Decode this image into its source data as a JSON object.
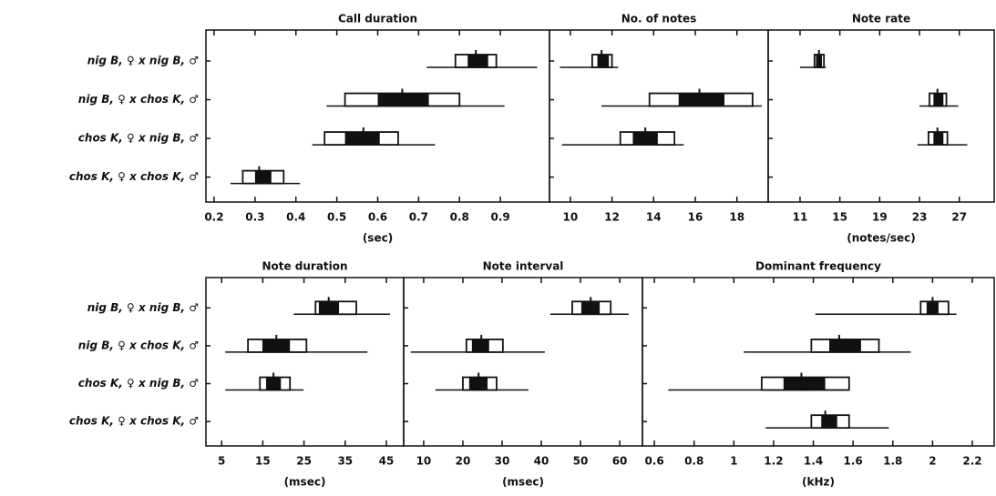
{
  "chart_data": [
    {
      "type": "range",
      "title": "Call duration",
      "xlabel": "(sec)",
      "categories": [
        "nig B, ♀ x nig B, ♂",
        "nig B, ♀ x chos K, ♂",
        "chos K, ♀ x nig B, ♂",
        "chos K, ♀ x chos K, ♂"
      ],
      "xlim": [
        0.18,
        1.02
      ],
      "xticks": [
        0.2,
        0.3,
        0.4,
        0.5,
        0.6,
        0.7,
        0.8,
        0.9
      ],
      "range_min": [
        0.72,
        0.475,
        0.44,
        0.24
      ],
      "range_max": [
        0.99,
        0.91,
        0.74,
        0.41
      ],
      "box_low": [
        0.79,
        0.52,
        0.47,
        0.27
      ],
      "box_high": [
        0.89,
        0.8,
        0.65,
        0.37
      ],
      "inner_low": [
        0.82,
        0.6,
        0.52,
        0.3
      ],
      "inner_high": [
        0.87,
        0.725,
        0.605,
        0.34
      ],
      "mean": [
        0.84,
        0.66,
        0.565,
        0.31
      ]
    },
    {
      "type": "range",
      "title": "No. of notes",
      "xlim": [
        9,
        19.5
      ],
      "xticks": [
        10,
        12,
        14,
        16,
        18
      ],
      "range_min": [
        9.5,
        11.5,
        9.6,
        null
      ],
      "range_max": [
        12.3,
        19.2,
        15.45,
        null
      ],
      "box_low": [
        11.05,
        13.8,
        12.4,
        null
      ],
      "box_high": [
        12.0,
        18.75,
        15.0,
        null
      ],
      "inner_low": [
        11.3,
        15.2,
        13.0,
        null
      ],
      "inner_high": [
        11.85,
        17.4,
        14.2,
        null
      ],
      "mean": [
        11.5,
        16.2,
        13.6,
        null
      ]
    },
    {
      "type": "range",
      "title": "Note rate",
      "xlabel": "(notes/sec)",
      "xlim": [
        7.8,
        30.5
      ],
      "xticks": [
        11,
        15,
        19,
        23,
        27
      ],
      "range_min": [
        11,
        23,
        22.8,
        null
      ],
      "range_max": [
        13.6,
        26.9,
        27.8,
        null
      ],
      "box_low": [
        12.45,
        24,
        23.9,
        null
      ],
      "box_high": [
        13.4,
        25.7,
        25.8,
        null
      ],
      "inner_low": [
        12.6,
        24.4,
        24.4,
        null
      ],
      "inner_high": [
        13.2,
        25.4,
        25.4,
        null
      ],
      "mean": [
        12.9,
        24.8,
        24.8,
        null
      ]
    },
    {
      "type": "range",
      "title": "Note duration",
      "xlabel": "(msec)",
      "categories": [
        "nig B, ♀ x nig B, ♂",
        "nig B, ♀ x chos K, ♂",
        "chos K, ♀ x nig B, ♂",
        "chos K, ♀ x chos K, ♂"
      ],
      "xlim": [
        1.2,
        49.2
      ],
      "xticks": [
        5,
        15,
        25,
        35,
        45
      ],
      "range_min": [
        22.5,
        5.9,
        5.9,
        null
      ],
      "range_max": [
        45.9,
        40.4,
        24.9,
        null
      ],
      "box_low": [
        27.8,
        11.4,
        14.3,
        null
      ],
      "box_high": [
        37.7,
        25.6,
        21.6,
        null
      ],
      "inner_low": [
        28.6,
        14.9,
        15.8,
        null
      ],
      "inner_high": [
        33.5,
        21.6,
        19.4,
        null
      ],
      "mean": [
        31,
        18.3,
        17.6,
        null
      ]
    },
    {
      "type": "range",
      "title": "Note interval",
      "xlabel": "(msec)",
      "xlim": [
        4.9,
        65.8
      ],
      "xticks": [
        10,
        20,
        30,
        40,
        50,
        60
      ],
      "range_min": [
        42.3,
        6.7,
        13,
        null
      ],
      "range_max": [
        62.3,
        40.9,
        36.7,
        null
      ],
      "box_low": [
        47.9,
        20.9,
        20,
        null
      ],
      "box_high": [
        57.7,
        30.2,
        28.6,
        null
      ],
      "inner_low": [
        50.2,
        22.3,
        21.6,
        null
      ],
      "inner_high": [
        54.9,
        26.7,
        26.3,
        null
      ],
      "mean": [
        52.6,
        24.7,
        24,
        null
      ]
    },
    {
      "type": "range",
      "title": "Dominant frequency",
      "xlabel": "(kHz)",
      "xlim": [
        0.54,
        2.31
      ],
      "xticks": [
        0.6,
        0.8,
        1.0,
        1.2,
        1.4,
        1.6,
        1.8,
        2.0,
        2.2
      ],
      "range_min": [
        1.41,
        1.05,
        0.67,
        1.16
      ],
      "range_max": [
        2.12,
        1.89,
        1.43,
        1.78
      ],
      "box_low": [
        1.94,
        1.39,
        1.14,
        1.39
      ],
      "box_high": [
        2.08,
        1.73,
        1.58,
        1.58
      ],
      "inner_low": [
        1.97,
        1.48,
        1.25,
        1.44
      ],
      "inner_high": [
        2.03,
        1.64,
        1.46,
        1.52
      ],
      "mean": [
        2.0,
        1.53,
        1.34,
        1.46
      ]
    }
  ]
}
